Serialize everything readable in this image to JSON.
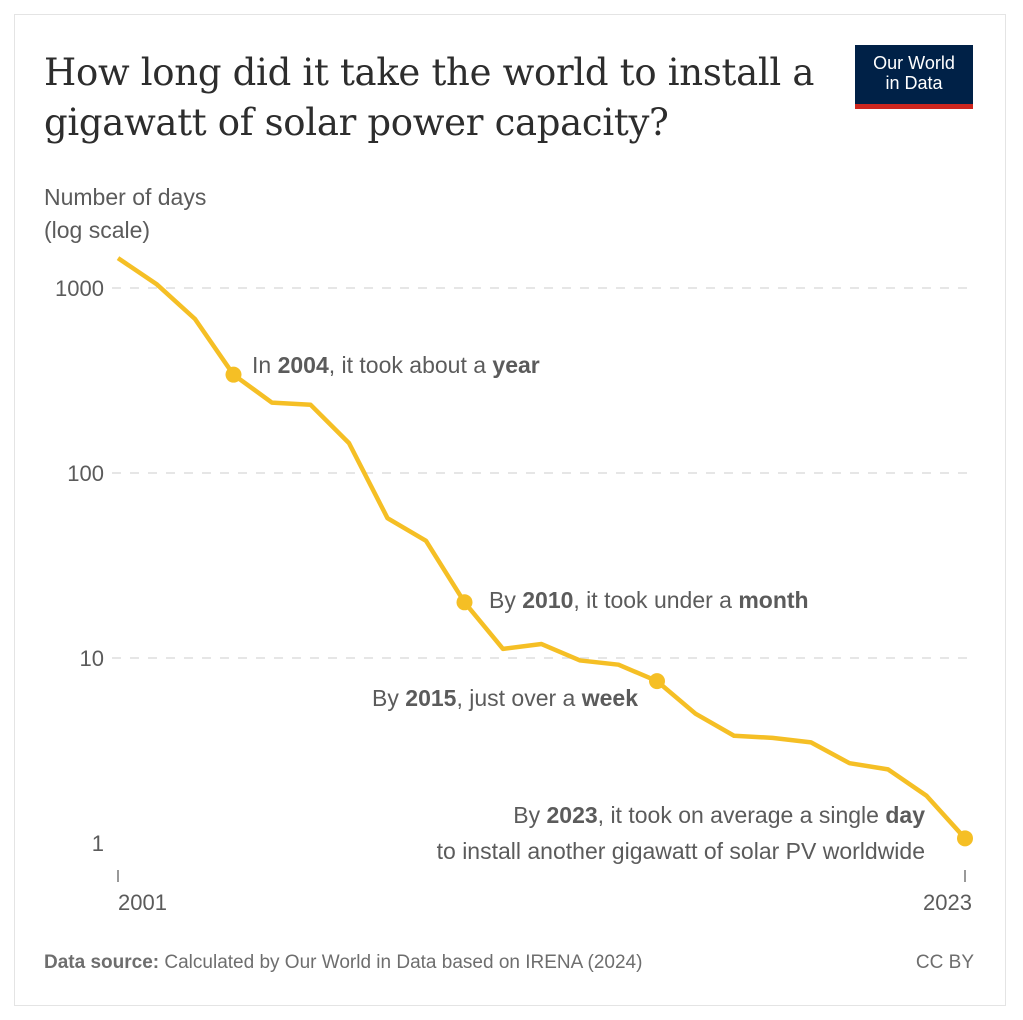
{
  "title": "How long did it take the world to install a gigawatt of solar power capacity?",
  "logo": {
    "line1": "Our World",
    "line2": "in Data"
  },
  "colors": {
    "line": "#f5bf25",
    "text": "#5b5b5b",
    "grid": "#dddddd",
    "logo_bg": "#002147",
    "logo_bar": "#ce261e"
  },
  "chart_data": {
    "type": "line",
    "ylabel_lines": [
      "Number of days",
      "(log scale)"
    ],
    "y_scale": "log",
    "ylim": [
      1,
      1450
    ],
    "y_ticks": [
      1,
      10,
      100,
      1000
    ],
    "y_tick_labels": [
      "1",
      "10",
      "100",
      "1000"
    ],
    "x_tick_labels": [
      "2001",
      "2023"
    ],
    "grid": "horizontal dashed",
    "x": [
      2001,
      2002,
      2003,
      2004,
      2005,
      2006,
      2007,
      2008,
      2009,
      2010,
      2011,
      2012,
      2013,
      2014,
      2015,
      2016,
      2017,
      2018,
      2019,
      2020,
      2021,
      2022,
      2023
    ],
    "values": [
      1450,
      1050,
      680,
      340,
      240,
      234,
      145,
      57,
      43,
      20,
      11.2,
      11.9,
      9.7,
      9.2,
      7.5,
      5.0,
      3.8,
      3.7,
      3.5,
      2.7,
      2.5,
      1.8,
      1.06
    ],
    "highlighted": [
      2004,
      2010,
      2015,
      2023
    ],
    "annotations": [
      {
        "year": 2004,
        "parts": [
          [
            "In ",
            false
          ],
          [
            "2004",
            true
          ],
          [
            ", it took about a ",
            false
          ],
          [
            "year",
            true
          ]
        ]
      },
      {
        "year": 2010,
        "parts": [
          [
            "By ",
            false
          ],
          [
            "2010",
            true
          ],
          [
            ", it took under a ",
            false
          ],
          [
            "month",
            true
          ]
        ]
      },
      {
        "year": 2015,
        "parts": [
          [
            "By ",
            false
          ],
          [
            "2015",
            true
          ],
          [
            ", just over a ",
            false
          ],
          [
            "week",
            true
          ]
        ]
      },
      {
        "year": 2023,
        "parts": [
          [
            "By ",
            false
          ],
          [
            "2023",
            true
          ],
          [
            ", it took on average a single ",
            false
          ],
          [
            "day",
            true
          ]
        ],
        "line2": "to install another gigawatt of solar PV worldwide"
      }
    ]
  },
  "footer": {
    "source_label": "Data source:",
    "source_text": "Calculated by Our World in Data based on IRENA (2024)",
    "license": "CC BY"
  }
}
